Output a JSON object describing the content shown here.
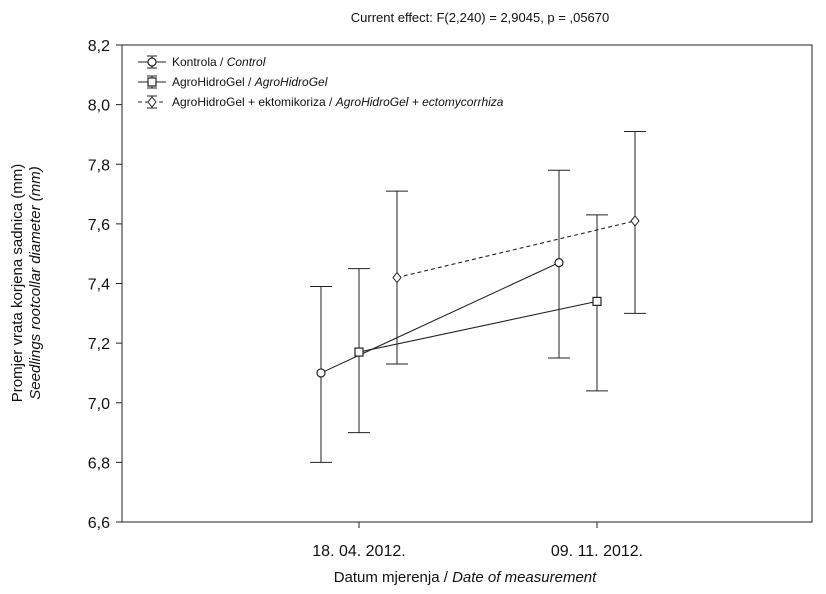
{
  "chart_data": {
    "type": "line",
    "title": "Current effect: F(2,240) = 2,9045, p = ,05670",
    "xlabel": "Datum mjerenja / ",
    "xlabel_italic": "Date of measurement",
    "ylabel": "Promjer vrata korjena sadnica (mm)",
    "ylabel_italic": "Seedlings rootcollar diameter (mm)",
    "categories": [
      "18. 04. 2012.",
      "09. 11. 2012."
    ],
    "ylim": [
      6.6,
      8.2
    ],
    "yticks": [
      "6,6",
      "6,8",
      "7,0",
      "7,2",
      "7,4",
      "7,6",
      "7,8",
      "8,0",
      "8,2"
    ],
    "grid": false,
    "legend_position": "top-left",
    "series": [
      {
        "name": "Kontrola / ",
        "name_italic": "Control",
        "marker": "circle",
        "line": "solid",
        "values": [
          7.1,
          7.47
        ],
        "err_low": [
          6.8,
          7.15
        ],
        "err_high": [
          7.39,
          7.78
        ]
      },
      {
        "name": "AgroHidroGel / ",
        "name_italic": "AgroHidroGel",
        "marker": "square",
        "line": "solid",
        "values": [
          7.17,
          7.34
        ],
        "err_low": [
          6.9,
          7.04
        ],
        "err_high": [
          7.45,
          7.63
        ]
      },
      {
        "name": "AgroHidroGel + ektomikoriza / ",
        "name_italic": "AgroHidroGel + ectomycorrhiza",
        "marker": "diamond",
        "line": "dashed",
        "values": [
          7.42,
          7.61
        ],
        "err_low": [
          7.13,
          7.3
        ],
        "err_high": [
          7.71,
          7.91
        ]
      }
    ]
  }
}
